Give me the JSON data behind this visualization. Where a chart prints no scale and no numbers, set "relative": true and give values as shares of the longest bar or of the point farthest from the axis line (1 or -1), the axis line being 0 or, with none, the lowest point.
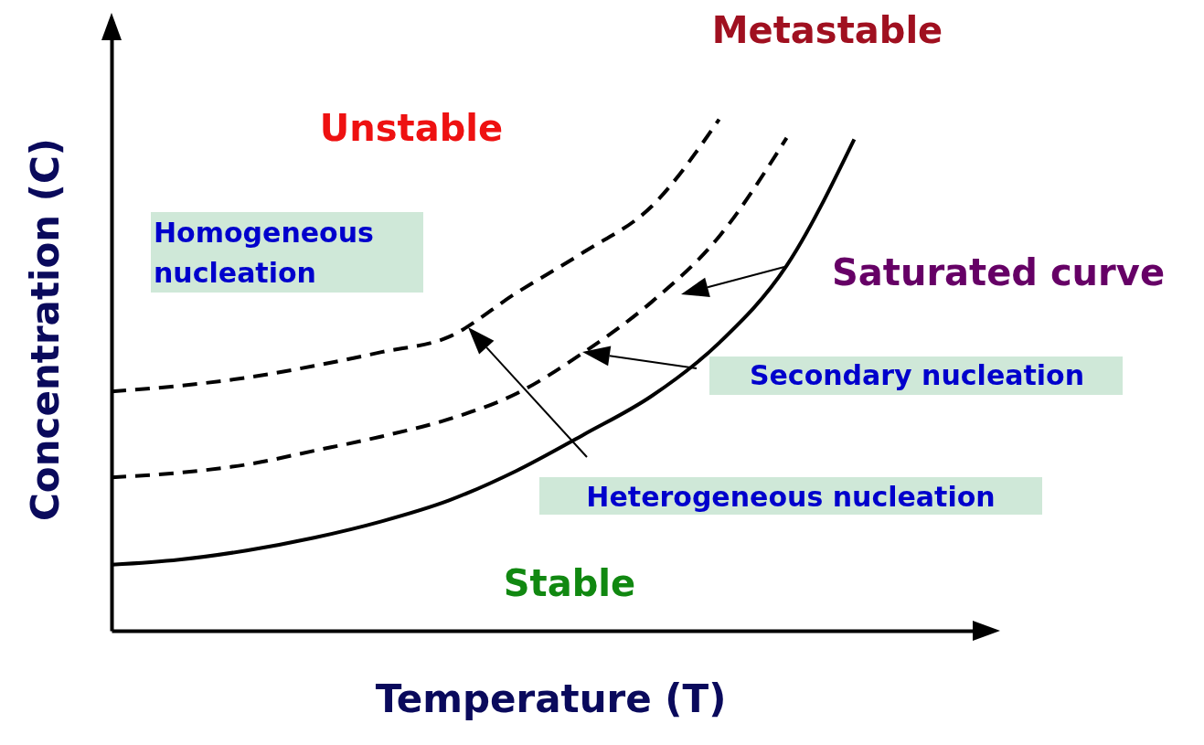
{
  "chart_data": {
    "type": "line",
    "relative": true,
    "xlabel": "Temperature (T)",
    "ylabel": "Concentration (C)",
    "grid": false,
    "categories": [
      null,
      null,
      null,
      null,
      null,
      null,
      null,
      null,
      null,
      null,
      null,
      null
    ],
    "series": [
      {
        "color": "#000000",
        "line_style": "solid",
        "values": [
          0.129,
          0.139,
          0.157,
          0.182,
          0.214,
          0.255,
          0.313,
          0.384,
          0.459,
          0.563,
          0.714,
          0.961
        ]
      },
      {
        "color": "#000000",
        "line_style": "dashed",
        "values": [
          0.3,
          0.309,
          0.325,
          0.352,
          0.38,
          0.414,
          0.464,
          0.545,
          0.643,
          0.771,
          0.964,
          null
        ]
      },
      {
        "color": "#000000",
        "line_style": "dashed",
        "values": [
          0.468,
          0.479,
          0.495,
          0.518,
          0.545,
          0.575,
          0.661,
          0.741,
          0.83,
          1,
          null,
          null
        ]
      }
    ],
    "annotations": [
      "Metastable",
      "Unstable",
      "Homogeneous nucleation",
      "Saturated curve",
      "Secondary nucleation",
      "Heterogeneous nucleation",
      "Stable"
    ]
  }
}
